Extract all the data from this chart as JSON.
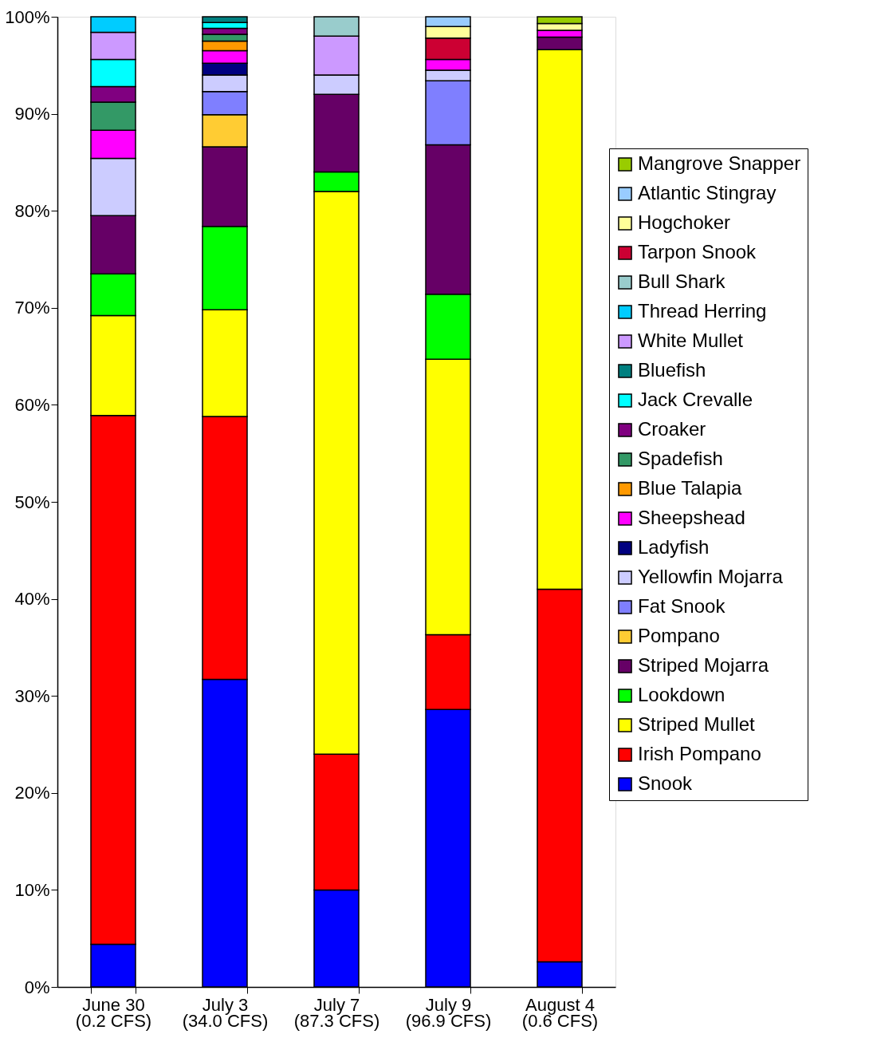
{
  "chart_data": {
    "type": "bar",
    "stacked": true,
    "categories": [
      "June 30\n(0.2 CFS)",
      "July 3\n(34.0 CFS)",
      "July 7\n(87.3 CFS)",
      "July 9\n(96.9 CFS)",
      "August 4\n(0.6 CFS)"
    ],
    "ylim": [
      0,
      100
    ],
    "yticks": [
      {
        "value": 0,
        "label": "0%"
      },
      {
        "value": 10,
        "label": "10%"
      },
      {
        "value": 20,
        "label": "20%"
      },
      {
        "value": 30,
        "label": "30%"
      },
      {
        "value": 40,
        "label": "40%"
      },
      {
        "value": 50,
        "label": "50%"
      },
      {
        "value": 60,
        "label": "60%"
      },
      {
        "value": 70,
        "label": "70%"
      },
      {
        "value": 80,
        "label": "80%"
      },
      {
        "value": 90,
        "label": "90%"
      },
      {
        "value": 100,
        "label": "100%"
      }
    ],
    "grid": false,
    "legend": "right",
    "series": [
      {
        "name": "Snook",
        "color": "#0000ff",
        "values": [
          4.4,
          31.7,
          10.0,
          28.6,
          2.6
        ]
      },
      {
        "name": "Irish Pompano",
        "color": "#ff0000",
        "values": [
          54.5,
          27.1,
          14.0,
          7.7,
          38.4
        ]
      },
      {
        "name": "Striped Mullet",
        "color": "#ffff00",
        "values": [
          10.3,
          11.0,
          58.0,
          28.4,
          55.6
        ]
      },
      {
        "name": "Lookdown",
        "color": "#00ff00",
        "values": [
          4.3,
          8.6,
          2.0,
          6.7,
          null
        ]
      },
      {
        "name": "Striped Mojarra",
        "color": "#660066",
        "values": [
          6.0,
          8.2,
          8.0,
          15.4,
          1.3
        ]
      },
      {
        "name": "Pompano",
        "color": "#ffcc33",
        "values": [
          null,
          3.3,
          null,
          null,
          null
        ]
      },
      {
        "name": "Fat Snook",
        "color": "#7f7fff",
        "values": [
          null,
          2.4,
          null,
          6.6,
          null
        ]
      },
      {
        "name": "Yellowfin Mojarra",
        "color": "#ccccff",
        "values": [
          5.9,
          1.7,
          2.0,
          1.1,
          null
        ]
      },
      {
        "name": "Ladyfish",
        "color": "#000080",
        "values": [
          null,
          1.2,
          null,
          null,
          null
        ]
      },
      {
        "name": "Sheepshead",
        "color": "#ff00ff",
        "values": [
          2.9,
          1.3,
          null,
          1.1,
          0.7
        ]
      },
      {
        "name": "Blue Talapia",
        "color": "#ff9900",
        "values": [
          null,
          1.0,
          null,
          null,
          null
        ]
      },
      {
        "name": "Spadefish",
        "color": "#339966",
        "values": [
          2.9,
          0.7,
          null,
          null,
          null
        ]
      },
      {
        "name": "Croaker",
        "color": "#800080",
        "values": [
          1.6,
          0.6,
          null,
          null,
          null
        ]
      },
      {
        "name": "Jack Crevalle",
        "color": "#00ffff",
        "values": [
          2.8,
          0.6,
          null,
          null,
          null
        ]
      },
      {
        "name": "Bluefish",
        "color": "#008080",
        "values": [
          null,
          0.6,
          null,
          null,
          null
        ]
      },
      {
        "name": "White Mullet",
        "color": "#cc99ff",
        "values": [
          2.8,
          null,
          4.0,
          null,
          null
        ]
      },
      {
        "name": "Thread Herring",
        "color": "#00ccff",
        "values": [
          1.6,
          null,
          null,
          null,
          null
        ]
      },
      {
        "name": "Bull Shark",
        "color": "#99cccc",
        "values": [
          null,
          null,
          2.0,
          null,
          null
        ]
      },
      {
        "name": "Tarpon Snook",
        "color": "#cc0033",
        "values": [
          null,
          null,
          null,
          2.2,
          null
        ]
      },
      {
        "name": "Hogchoker",
        "color": "#ffff99",
        "values": [
          null,
          null,
          null,
          1.2,
          0.7
        ]
      },
      {
        "name": "Atlantic Stingray",
        "color": "#99ccff",
        "values": [
          null,
          null,
          null,
          1.0,
          null
        ]
      },
      {
        "name": "Mangrove Snapper",
        "color": "#99cc00",
        "values": [
          null,
          null,
          null,
          null,
          0.7
        ]
      }
    ]
  }
}
